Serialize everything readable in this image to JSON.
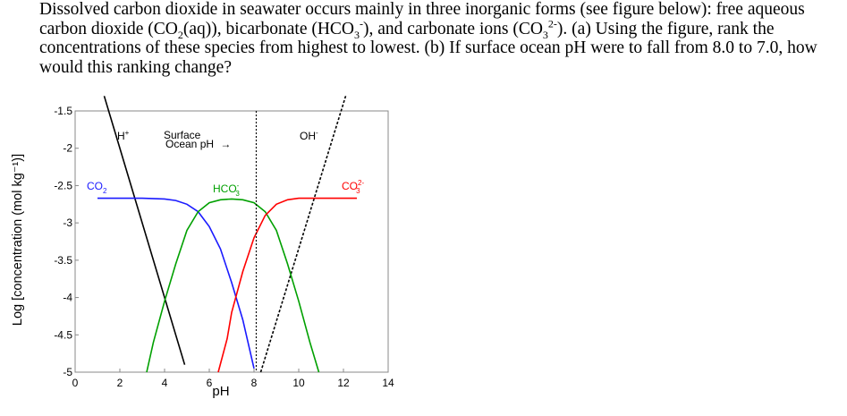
{
  "question": {
    "part1": "Dissolved carbon dioxide in seawater occurs mainly in three inorganic forms (see figure below): free aqueous carbon dioxide (CO",
    "co2_sub": "2",
    "part2": "(aq)), bicarbonate (HCO",
    "hco3_sub": "3",
    "hco3_sup": "-",
    "part3": "), and carbonate ions (CO",
    "co3_sub": "3",
    "co3_sup": "2-",
    "part4": "). (a) Using the figure, rank the concentrations of these species from highest to lowest. (b) If surface ocean pH were to fall from 8.0 to 7.0, how would this ranking change?"
  },
  "chart_data": {
    "type": "line",
    "xlabel": "pH",
    "ylabel": "Log [concentration (mol kg⁻¹)]",
    "xlim": [
      0,
      14
    ],
    "ylim": [
      -5,
      -1.5
    ],
    "xticks": [
      "0",
      "2",
      "4",
      "6",
      "8",
      "10",
      "12",
      "14"
    ],
    "yticks": [
      "-1.5",
      "-2",
      "-2.5",
      "-3",
      "-3.5",
      "-4",
      "-4.5",
      "-5"
    ],
    "annotations": {
      "surface_line1": "Surface",
      "surface_line2": "Ocean pH",
      "surface_arrow": "→",
      "surface_ph": 8.1
    },
    "series": [
      {
        "name": "H+",
        "label": "H",
        "label_sup": "+",
        "color": "#000000",
        "dashed": false,
        "x": [
          1.3,
          4.9
        ],
        "y": [
          -1.3,
          -4.9
        ]
      },
      {
        "name": "OH-",
        "label": "OH",
        "label_sup": "-",
        "color": "#000000",
        "dashed": true,
        "x": [
          8.3,
          12.1
        ],
        "y": [
          -5.0,
          -1.3
        ]
      },
      {
        "name": "CO2",
        "label": "CO",
        "label_sub": "2",
        "color": "#1a1aff",
        "dashed": false,
        "x": [
          1.0,
          2.0,
          3.0,
          4.0,
          4.5,
          5.0,
          5.5,
          6.0,
          6.5,
          7.0,
          7.5,
          8.0
        ],
        "y": [
          -2.67,
          -2.67,
          -2.67,
          -2.68,
          -2.7,
          -2.75,
          -2.85,
          -3.05,
          -3.35,
          -3.8,
          -4.3,
          -4.95
        ]
      },
      {
        "name": "HCO3-",
        "label": "HCO",
        "label_sub": "3",
        "label_sup": "-",
        "color": "#00a000",
        "dashed": false,
        "x": [
          3.2,
          3.5,
          4.0,
          4.5,
          5.0,
          5.5,
          6.0,
          6.5,
          7.0,
          7.5,
          8.0,
          8.5,
          9.0,
          9.5,
          10.0,
          10.5,
          10.9
        ],
        "y": [
          -5.0,
          -4.6,
          -4.05,
          -3.55,
          -3.1,
          -2.85,
          -2.73,
          -2.69,
          -2.68,
          -2.69,
          -2.73,
          -2.85,
          -3.1,
          -3.55,
          -4.05,
          -4.6,
          -5.0
        ]
      },
      {
        "name": "CO3 2-",
        "label": "CO",
        "label_sub": "3",
        "label_sup": "2-",
        "color": "#ff0000",
        "dashed": false,
        "x": [
          6.4,
          6.8,
          7.0,
          7.5,
          8.0,
          8.5,
          9.0,
          9.5,
          10.0,
          10.5,
          11.0,
          12.0,
          12.6
        ],
        "y": [
          -5.0,
          -4.55,
          -4.2,
          -3.65,
          -3.2,
          -2.9,
          -2.75,
          -2.69,
          -2.67,
          -2.67,
          -2.67,
          -2.67,
          -2.67
        ]
      }
    ]
  }
}
